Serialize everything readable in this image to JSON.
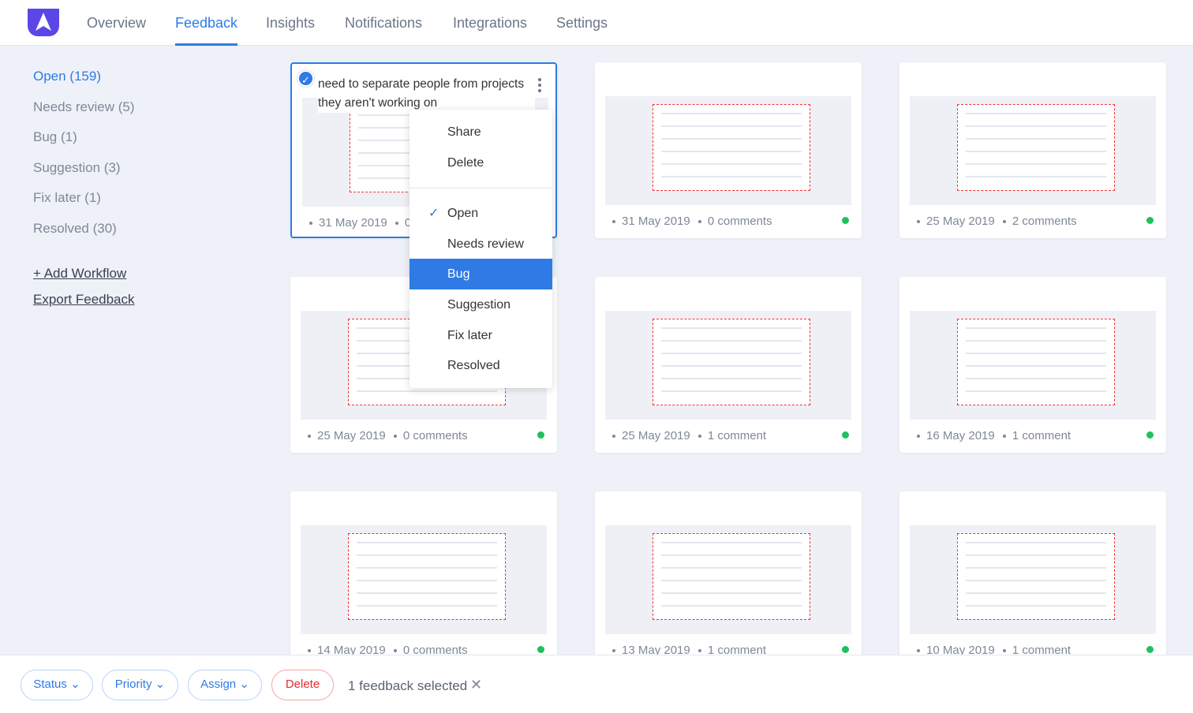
{
  "nav": {
    "tabs": [
      "Overview",
      "Feedback",
      "Insights",
      "Notifications",
      "Integrations",
      "Settings"
    ],
    "active": "Feedback",
    "brand_color": "#5b47e8",
    "accent": "#2f7ae5"
  },
  "sidebar": {
    "filters": [
      "Open (159)",
      "Needs review (5)",
      "Bug (1)",
      "Suggestion (3)",
      "Fix later (1)",
      "Resolved (30)"
    ],
    "add_workflow": "+ Add Workflow",
    "export": "Export Feedback"
  },
  "cards": [
    {
      "title": "need to separate people from projects they aren't working on",
      "date": "31 May 2019",
      "comments": "0 comments",
      "selected": true
    },
    {
      "date": "31 May 2019",
      "comments": "0 comments"
    },
    {
      "date": "25 May 2019",
      "comments": "2 comments"
    },
    {
      "date": "25 May 2019",
      "comments": "0 comments"
    },
    {
      "date": "25 May 2019",
      "comments": "1 comment"
    },
    {
      "date": "16 May 2019",
      "comments": "1 comment"
    },
    {
      "date": "14 May 2019",
      "comments": "0 comments"
    },
    {
      "date": "13 May 2019",
      "comments": "1 comment"
    },
    {
      "date": "10 May 2019",
      "comments": "1 comment"
    }
  ],
  "menu": {
    "actions": [
      "Share",
      "Delete"
    ],
    "statuses": [
      "Open",
      "Needs review",
      "Bug",
      "Suggestion",
      "Fix later",
      "Resolved"
    ],
    "checked": "Open",
    "highlighted": "Bug"
  },
  "bottom": {
    "status": "Status",
    "priority": "Priority",
    "assign": "Assign",
    "delete": "Delete",
    "selected_text": "1 feedback selected"
  }
}
